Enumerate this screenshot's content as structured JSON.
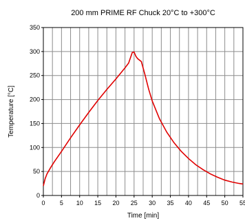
{
  "chart_data": {
    "type": "line",
    "title": "200 mm PRIME RF Chuck 20°C to +300°C",
    "xlabel": "Time [min]",
    "ylabel": "Temperature [°C]",
    "xlim": [
      0,
      55
    ],
    "ylim": [
      0,
      350
    ],
    "x_ticks": [
      "0",
      "5",
      "10",
      "15",
      "20",
      "25",
      "30",
      "35",
      "40",
      "45",
      "50",
      "55"
    ],
    "y_ticks": [
      "0",
      "50",
      "100",
      "150",
      "200",
      "250",
      "300",
      "350"
    ],
    "x_grid_step": 2.5,
    "grid": true,
    "series": [
      {
        "color": "#e00000",
        "x": [
          0,
          0.5,
          1,
          2,
          3,
          5,
          7.5,
          10,
          12.5,
          15,
          17.5,
          20,
          22.5,
          23.5,
          24.5,
          25,
          25.5,
          26,
          27,
          28,
          29,
          30,
          32,
          34,
          36,
          38,
          40,
          42,
          44,
          46,
          48,
          50,
          52,
          54,
          55
        ],
        "y": [
          20,
          35,
          45,
          58,
          70,
          92,
          120,
          147,
          173,
          198,
          221,
          243,
          266,
          276,
          298,
          299,
          290,
          285,
          279,
          252,
          222,
          197,
          160,
          132,
          110,
          92,
          77,
          64,
          54,
          45,
          38,
          32,
          28,
          25,
          24
        ]
      }
    ]
  }
}
